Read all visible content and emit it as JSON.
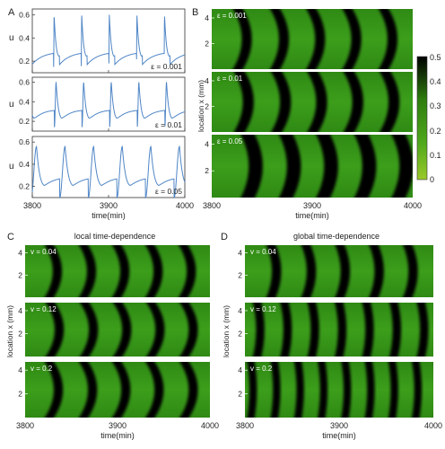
{
  "panels": {
    "A": {
      "letter": "A",
      "ylabel": "u",
      "xlabel": "time(min)",
      "xticks": [
        "3800",
        "3900",
        "4000"
      ],
      "yticks": [
        "0.2",
        "0.4",
        "0.6"
      ]
    },
    "B": {
      "letter": "B",
      "ylabel": "location x (mm)",
      "xlabel": "time(min)",
      "xticks": [
        "3800",
        "3900",
        "4000"
      ],
      "yticks": [
        "2",
        "4"
      ]
    },
    "C": {
      "letter": "C",
      "title": "local time-dependence",
      "ylabel": "location x (mm)",
      "xlabel": "time(min)",
      "xticks": [
        "3800",
        "3900",
        "4000"
      ],
      "yticks": [
        "2",
        "4"
      ]
    },
    "D": {
      "letter": "D",
      "title": "global time-dependence",
      "ylabel": "location x (mm)",
      "xlabel": "time(min)",
      "xticks": [
        "3800",
        "3900",
        "4000"
      ],
      "yticks": [
        "2",
        "4"
      ]
    }
  },
  "colorbar": {
    "ticks": [
      "0.5",
      "0.4",
      "0.3",
      "0.2",
      "0.1",
      "0"
    ],
    "colors": [
      "#000000",
      "#2e7d0f",
      "#4fa81c",
      "#9ac92a"
    ]
  },
  "line_color": "#4f86c6",
  "chart_data": [
    {
      "type": "line",
      "panel": "A",
      "xlim": [
        3800,
        4000
      ],
      "ylim": [
        0.1,
        0.65
      ],
      "series": [
        {
          "label": "ε = 0.001",
          "period": 36.2,
          "first_spike": 3828,
          "rise": 0.6,
          "umin": 0.15,
          "umax": 0.6,
          "mid": 0.35,
          "shape": 0.25
        },
        {
          "label": "ε = 0.01",
          "period": 36.2,
          "first_spike": 3829,
          "rise": 2.2,
          "umin": 0.14,
          "umax": 0.6,
          "mid": 0.32,
          "shape": 0.55
        },
        {
          "label": "ε = 0.05",
          "period": 37.5,
          "first_spike": 3836,
          "rise": 7,
          "umin": 0.1,
          "umax": 0.56,
          "mid": 0.28,
          "shape": 1
        }
      ]
    },
    {
      "type": "heatmap",
      "panel": "B",
      "xlim": [
        3800,
        4000
      ],
      "ylim": [
        0,
        4.7
      ],
      "vlim": [
        0,
        0.5
      ],
      "rows": [
        {
          "label": "ε = 0.001",
          "bands": [
            3820,
            3857,
            3893,
            3929,
            3965,
            4001
          ],
          "curve": 18,
          "width": 10
        },
        {
          "label": "ε = 0.01",
          "bands": [
            3821,
            3858,
            3894,
            3930,
            3966
          ],
          "curve": 18,
          "width": 11
        },
        {
          "label": "ε = 0.05",
          "bands": [
            3828,
            3866,
            3903,
            3941,
            3978
          ],
          "curve": 16,
          "width": 14
        }
      ]
    },
    {
      "type": "heatmap",
      "panel": "C",
      "xlim": [
        3800,
        4000
      ],
      "ylim": [
        0,
        4.7
      ],
      "rows": [
        {
          "label": "v = 0.04",
          "bands": [
            3820,
            3857,
            3893,
            3929,
            3965
          ],
          "curve": 18,
          "width": 10
        },
        {
          "label": "v = 0.12",
          "bands": [
            3821,
            3858,
            3894,
            3930,
            3966
          ],
          "curve": 20,
          "width": 10
        },
        {
          "label": "v = 0.2",
          "bands": [
            3820,
            3857,
            3893,
            3929,
            3966
          ],
          "curve": 20,
          "width": 10
        }
      ]
    },
    {
      "type": "heatmap",
      "panel": "D",
      "xlim": [
        3800,
        4000
      ],
      "ylim": [
        0,
        4.7
      ],
      "rows": [
        {
          "label": "v = 0.04",
          "bands": [
            3822,
            3859,
            3895,
            3931,
            3967
          ],
          "curve": 12,
          "width": 10
        },
        {
          "label": "v = 0.12",
          "bands": [
            3808,
            3837,
            3866,
            3895,
            3924,
            3953,
            3982
          ],
          "curve": 7,
          "width": 9
        },
        {
          "label": "v = 0.2",
          "bands": [
            3802,
            3827,
            3852,
            3877,
            3902,
            3927,
            3952,
            3977,
            4001
          ],
          "curve": 5,
          "width": 8
        }
      ]
    }
  ]
}
